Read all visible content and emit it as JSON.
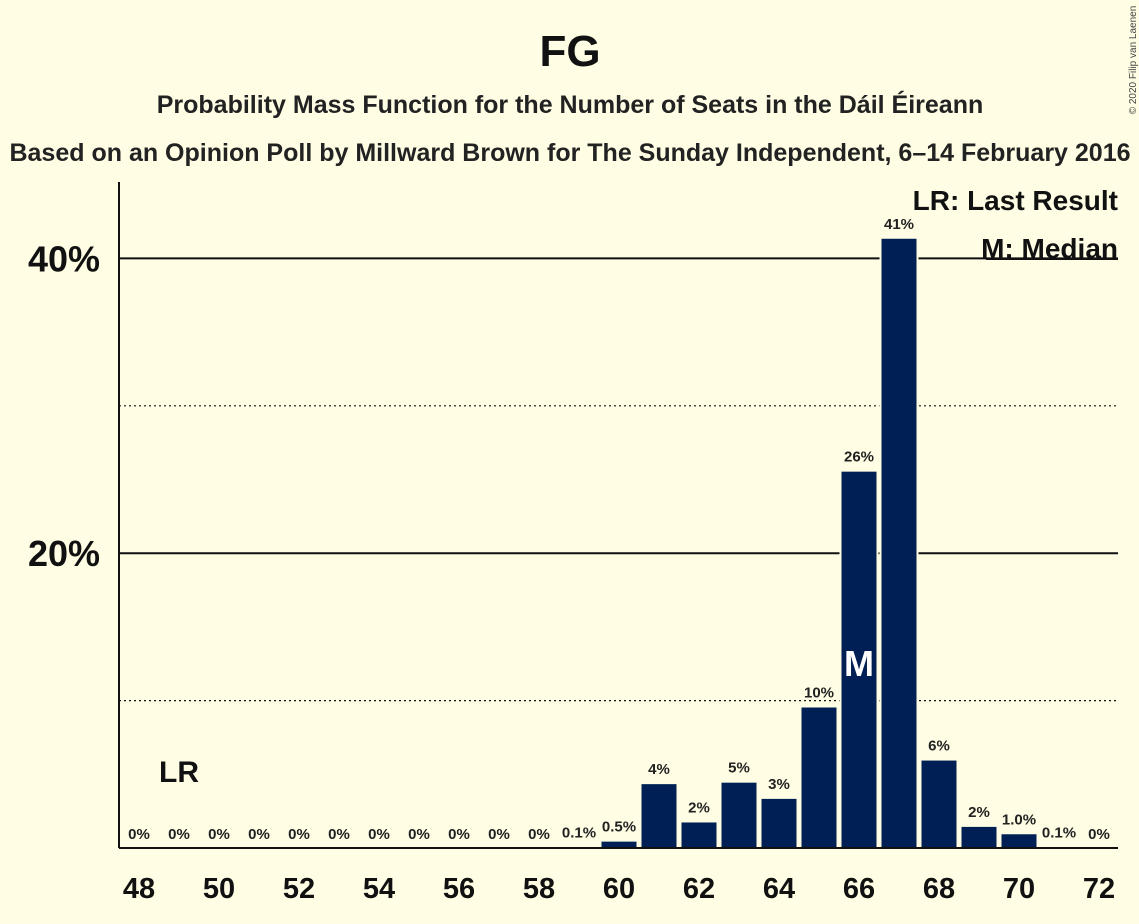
{
  "chart_data": {
    "type": "bar",
    "title": "FG",
    "subtitle": "Probability Mass Function for the Number of Seats in the Dáil Éireann",
    "subtitle2": "Based on an Opinion Poll by Millward Brown for The Sunday Independent, 6–14 February 2016",
    "credit": "© 2020 Filip van Laenen",
    "x": [
      48,
      49,
      50,
      51,
      52,
      53,
      54,
      55,
      56,
      57,
      58,
      59,
      60,
      61,
      62,
      63,
      64,
      65,
      66,
      67,
      68,
      69,
      70,
      71,
      72
    ],
    "values": [
      0,
      0,
      0,
      0,
      0,
      0,
      0,
      0,
      0,
      0,
      0,
      0.1,
      0.5,
      4.4,
      1.8,
      4.5,
      3.4,
      9.6,
      25.6,
      41.4,
      6.0,
      1.5,
      1.0,
      0.1,
      0
    ],
    "labels": [
      "0%",
      "0%",
      "0%",
      "0%",
      "0%",
      "0%",
      "0%",
      "0%",
      "0%",
      "0%",
      "0%",
      "0.1%",
      "0.5%",
      "4%",
      "2%",
      "5%",
      "3%",
      "10%",
      "26%",
      "41%",
      "6%",
      "2%",
      "1.0%",
      "0.1%",
      "0%"
    ],
    "x_tick_labels": [
      "48",
      "50",
      "52",
      "54",
      "56",
      "58",
      "60",
      "62",
      "64",
      "66",
      "68",
      "70",
      "72"
    ],
    "y_tick_labels": [
      "20%",
      "40%"
    ],
    "ylim": [
      0,
      45
    ],
    "gridlines_solid": [
      20,
      40
    ],
    "gridlines_dotted": [
      10,
      30
    ],
    "last_result_seat": 49,
    "last_result_marker": "LR",
    "median_seat": 66,
    "median_marker": "M",
    "legend": [
      "LR: Last Result",
      "M: Median"
    ],
    "legend_position": "top-right",
    "bar_color": "#001F54",
    "background_color": "#FFFDE4"
  }
}
